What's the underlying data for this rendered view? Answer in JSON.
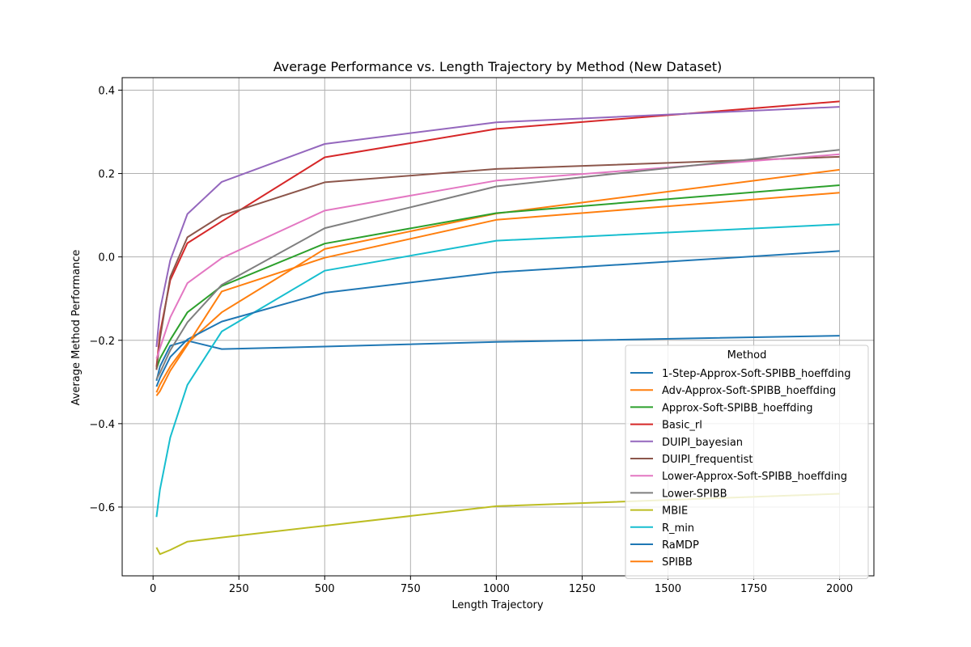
{
  "chart_data": {
    "type": "line",
    "title": "Average Performance vs. Length Trajectory by Method (New Dataset)",
    "xlabel": "Length Trajectory",
    "ylabel": "Average Method Performance",
    "xlim": [
      -90,
      2100
    ],
    "ylim": [
      -0.765,
      0.43
    ],
    "xticks": [
      0,
      250,
      500,
      750,
      1000,
      1250,
      1500,
      1750,
      2000
    ],
    "yticks": [
      -0.6,
      -0.4,
      -0.2,
      0.0,
      0.2,
      0.4
    ],
    "xtick_labels": [
      "0",
      "250",
      "500",
      "750",
      "1000",
      "1250",
      "1500",
      "1750",
      "2000"
    ],
    "ytick_labels": [
      "−0.6",
      "−0.4",
      "−0.2",
      "0.0",
      "0.2",
      "0.4"
    ],
    "grid": true,
    "legend_title": "Method",
    "legend_position": "lower-right",
    "x": [
      10,
      20,
      50,
      100,
      200,
      500,
      1000,
      2000
    ],
    "series": [
      {
        "name": "1-Step-Approx-Soft-SPIBB_hoeffding",
        "color": "#1f77b4",
        "values": [
          -0.297,
          -0.263,
          -0.213,
          -0.201,
          -0.221,
          -0.215,
          -0.204,
          -0.189
        ]
      },
      {
        "name": "Adv-Approx-Soft-SPIBB_hoeffding",
        "color": "#ff7f0e",
        "values": [
          -0.325,
          -0.306,
          -0.263,
          -0.207,
          -0.133,
          0.019,
          0.104,
          0.209
        ]
      },
      {
        "name": "Approx-Soft-SPIBB_hoeffding",
        "color": "#2ca02c",
        "values": [
          -0.268,
          -0.244,
          -0.199,
          -0.133,
          -0.07,
          0.032,
          0.105,
          0.172
        ]
      },
      {
        "name": "Basic_rl",
        "color": "#d62728",
        "values": [
          -0.264,
          -0.183,
          -0.056,
          0.033,
          0.085,
          0.239,
          0.307,
          0.373
        ]
      },
      {
        "name": "DUIPI_bayesian",
        "color": "#9467bd",
        "values": [
          -0.216,
          -0.128,
          -0.008,
          0.103,
          0.18,
          0.271,
          0.323,
          0.36
        ]
      },
      {
        "name": "DUIPI_frequentist",
        "color": "#8c564b",
        "values": [
          -0.271,
          -0.196,
          -0.048,
          0.047,
          0.099,
          0.179,
          0.211,
          0.24
        ]
      },
      {
        "name": "Lower-Approx-Soft-SPIBB_hoeffding",
        "color": "#e377c2",
        "values": [
          -0.244,
          -0.219,
          -0.145,
          -0.063,
          -0.003,
          0.111,
          0.183,
          0.246
        ]
      },
      {
        "name": "Lower-SPIBB",
        "color": "#7f7f7f",
        "values": [
          -0.293,
          -0.278,
          -0.224,
          -0.157,
          -0.067,
          0.069,
          0.169,
          0.257
        ]
      },
      {
        "name": "MBIE",
        "color": "#bcbd22",
        "values": [
          -0.697,
          -0.713,
          -0.703,
          -0.683,
          -0.673,
          -0.645,
          -0.598,
          -0.568
        ]
      },
      {
        "name": "R_min",
        "color": "#17becf",
        "values": [
          -0.624,
          -0.558,
          -0.433,
          -0.307,
          -0.179,
          -0.033,
          0.039,
          0.078
        ]
      },
      {
        "name": "RaMDP",
        "color": "#1f77b4",
        "values": [
          -0.311,
          -0.29,
          -0.24,
          -0.198,
          -0.155,
          -0.086,
          -0.037,
          0.014
        ]
      },
      {
        "name": "SPIBB",
        "color": "#ff7f0e",
        "values": [
          -0.333,
          -0.322,
          -0.273,
          -0.211,
          -0.083,
          -0.002,
          0.089,
          0.154
        ]
      }
    ]
  }
}
